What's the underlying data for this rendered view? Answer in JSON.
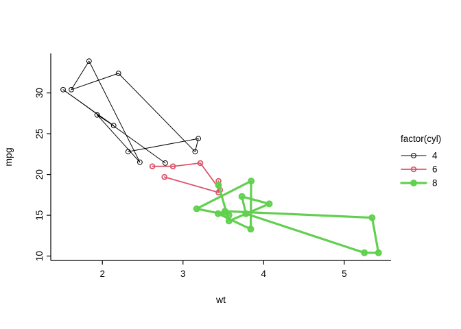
{
  "figure": {
    "background": "#ffffff",
    "axis_color": "#000000",
    "text_color": "#000000"
  },
  "chart_data": {
    "type": "line",
    "title": "",
    "xlabel": "wt",
    "ylabel": "mpg",
    "xlim": [
      1.36,
      5.58
    ],
    "ylim": [
      9.46,
      34.84
    ],
    "xticks": [
      2,
      3,
      4,
      5
    ],
    "yticks": [
      10,
      15,
      20,
      25,
      30
    ],
    "grid": false,
    "marker": "open-circle",
    "legend": {
      "title": "factor(cyl)",
      "position": "right",
      "entries": [
        {
          "label": "4",
          "color": "#000000",
          "lwd": 1
        },
        {
          "label": "6",
          "color": "#DF536B",
          "lwd": 1.8
        },
        {
          "label": "8",
          "color": "#61D04F",
          "lwd": 3.2
        }
      ]
    },
    "series": [
      {
        "name": "4",
        "color": "#000000",
        "lwd": 1,
        "points": [
          [
            2.32,
            22.8
          ],
          [
            3.19,
            24.4
          ],
          [
            3.15,
            22.8
          ],
          [
            2.2,
            32.4
          ],
          [
            1.615,
            30.4
          ],
          [
            1.835,
            33.9
          ],
          [
            2.465,
            21.5
          ],
          [
            1.935,
            27.3
          ],
          [
            2.14,
            26.0
          ],
          [
            1.513,
            30.4
          ],
          [
            2.78,
            21.4
          ]
        ]
      },
      {
        "name": "6",
        "color": "#DF536B",
        "lwd": 1.8,
        "points": [
          [
            2.62,
            21.0
          ],
          [
            2.875,
            21.0
          ],
          [
            3.215,
            21.4
          ],
          [
            3.46,
            18.1
          ],
          [
            3.44,
            19.2
          ],
          [
            3.44,
            17.8
          ],
          [
            2.77,
            19.7
          ]
        ]
      },
      {
        "name": "8",
        "color": "#61D04F",
        "lwd": 3.2,
        "points": [
          [
            3.44,
            18.7
          ],
          [
            3.57,
            14.3
          ],
          [
            4.07,
            16.4
          ],
          [
            3.73,
            17.3
          ],
          [
            3.78,
            15.2
          ],
          [
            5.25,
            10.4
          ],
          [
            5.424,
            10.4
          ],
          [
            5.345,
            14.7
          ],
          [
            3.52,
            15.5
          ],
          [
            3.435,
            15.2
          ],
          [
            3.84,
            13.3
          ],
          [
            3.845,
            19.2
          ],
          [
            3.17,
            15.8
          ],
          [
            3.57,
            15.0
          ]
        ]
      }
    ]
  }
}
